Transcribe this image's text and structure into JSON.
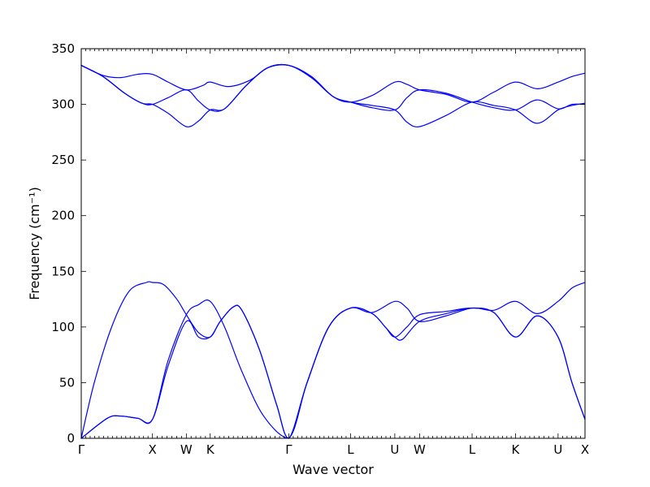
{
  "chart_data": {
    "type": "line",
    "title": "",
    "xlabel": "Wave vector",
    "ylabel": "Frequency (cm⁻¹)",
    "ylim": [
      0,
      350
    ],
    "xlim": [
      0,
      11.6
    ],
    "grid": false,
    "line_color": "#0000ff",
    "yticks": [
      0,
      50,
      100,
      150,
      200,
      250,
      300,
      350
    ],
    "x_tick_positions": [
      0,
      1.64,
      2.42,
      2.97,
      4.78,
      6.2,
      7.22,
      7.79,
      9.0,
      10.0,
      10.98,
      11.6
    ],
    "x_tick_labels": [
      "Γ",
      "X",
      "W",
      "K",
      "Γ",
      "L",
      "U",
      "W",
      "L",
      "K",
      "U",
      "X"
    ],
    "series": [
      {
        "values": [
          [
            0,
            0
          ],
          [
            0.3,
            50
          ],
          [
            0.7,
            100
          ],
          [
            1.1,
            132
          ],
          [
            1.5,
            140
          ],
          [
            1.64,
            140
          ],
          [
            1.9,
            138
          ],
          [
            2.2,
            125
          ],
          [
            2.42,
            111
          ],
          [
            2.7,
            95
          ],
          [
            2.97,
            91
          ],
          [
            3.2,
            105
          ],
          [
            3.5,
            118
          ],
          [
            3.7,
            115
          ],
          [
            4.1,
            80
          ],
          [
            4.5,
            30
          ],
          [
            4.78,
            0
          ],
          [
            5.2,
            50
          ],
          [
            5.7,
            100
          ],
          [
            6.2,
            117
          ],
          [
            6.7,
            112
          ],
          [
            7.0,
            100
          ],
          [
            7.22,
            91
          ],
          [
            7.5,
            100
          ],
          [
            7.79,
            111
          ],
          [
            8.4,
            114
          ],
          [
            9.0,
            117
          ],
          [
            9.5,
            113
          ],
          [
            10.0,
            91
          ],
          [
            10.5,
            110
          ],
          [
            10.98,
            91
          ],
          [
            11.3,
            50
          ],
          [
            11.6,
            17
          ]
        ]
      },
      {
        "values": [
          [
            0,
            0
          ],
          [
            0.6,
            18
          ],
          [
            0.9,
            20
          ],
          [
            1.3,
            18
          ],
          [
            1.64,
            17
          ],
          [
            2.0,
            70
          ],
          [
            2.42,
            111
          ],
          [
            2.7,
            120
          ],
          [
            2.97,
            123
          ],
          [
            3.3,
            100
          ],
          [
            3.7,
            60
          ],
          [
            4.2,
            20
          ],
          [
            4.78,
            0
          ],
          [
            5.2,
            50
          ],
          [
            5.7,
            100
          ],
          [
            6.2,
            117
          ],
          [
            6.7,
            113
          ],
          [
            7.22,
            123
          ],
          [
            7.5,
            117
          ],
          [
            7.79,
            105
          ],
          [
            8.4,
            110
          ],
          [
            9.0,
            117
          ],
          [
            9.5,
            115
          ],
          [
            10.0,
            123
          ],
          [
            10.5,
            112
          ],
          [
            10.98,
            123
          ],
          [
            11.3,
            135
          ],
          [
            11.6,
            140
          ]
        ]
      },
      {
        "values": [
          [
            0,
            0
          ],
          [
            0.6,
            18
          ],
          [
            0.9,
            20
          ],
          [
            1.3,
            18
          ],
          [
            1.64,
            17
          ],
          [
            2.0,
            65
          ],
          [
            2.42,
            105
          ],
          [
            2.7,
            91
          ],
          [
            2.97,
            91
          ],
          [
            3.2,
            105
          ],
          [
            3.5,
            118
          ],
          [
            3.7,
            115
          ],
          [
            4.1,
            80
          ],
          [
            4.5,
            30
          ],
          [
            4.78,
            0
          ],
          [
            5.2,
            50
          ],
          [
            5.7,
            100
          ],
          [
            6.2,
            117
          ],
          [
            6.7,
            112
          ],
          [
            7.0,
            100
          ],
          [
            7.22,
            91
          ],
          [
            7.4,
            89
          ],
          [
            7.79,
            105
          ],
          [
            8.4,
            112
          ],
          [
            9.0,
            117
          ],
          [
            9.5,
            113
          ],
          [
            10.0,
            91
          ],
          [
            10.5,
            110
          ],
          [
            10.98,
            91
          ],
          [
            11.3,
            50
          ],
          [
            11.6,
            17
          ]
        ]
      },
      {
        "values": [
          [
            0,
            335
          ],
          [
            0.5,
            326
          ],
          [
            0.9,
            324
          ],
          [
            1.3,
            327
          ],
          [
            1.64,
            327
          ],
          [
            2.0,
            320
          ],
          [
            2.42,
            313
          ],
          [
            2.8,
            317
          ],
          [
            2.97,
            320
          ],
          [
            3.4,
            316
          ],
          [
            3.9,
            322
          ],
          [
            4.3,
            333
          ],
          [
            4.78,
            335
          ],
          [
            5.3,
            325
          ],
          [
            5.8,
            307
          ],
          [
            6.2,
            302
          ],
          [
            6.7,
            308
          ],
          [
            7.22,
            320
          ],
          [
            7.5,
            318
          ],
          [
            7.79,
            313
          ],
          [
            8.4,
            309
          ],
          [
            9.0,
            302
          ],
          [
            9.5,
            311
          ],
          [
            10.0,
            320
          ],
          [
            10.5,
            314
          ],
          [
            10.98,
            320
          ],
          [
            11.3,
            325
          ],
          [
            11.6,
            328
          ]
        ]
      },
      {
        "values": [
          [
            0,
            335
          ],
          [
            0.5,
            325
          ],
          [
            1.0,
            310
          ],
          [
            1.4,
            301
          ],
          [
            1.64,
            300
          ],
          [
            2.0,
            306
          ],
          [
            2.42,
            313
          ],
          [
            2.7,
            303
          ],
          [
            2.97,
            295
          ],
          [
            3.3,
            296
          ],
          [
            3.8,
            317
          ],
          [
            4.3,
            333
          ],
          [
            4.78,
            335
          ],
          [
            5.3,
            324
          ],
          [
            5.8,
            307
          ],
          [
            6.2,
            302
          ],
          [
            6.7,
            297
          ],
          [
            7.22,
            295
          ],
          [
            7.5,
            306
          ],
          [
            7.79,
            313
          ],
          [
            8.4,
            310
          ],
          [
            9.0,
            302
          ],
          [
            9.5,
            297
          ],
          [
            10.0,
            295
          ],
          [
            10.5,
            304
          ],
          [
            10.98,
            296
          ],
          [
            11.3,
            300
          ],
          [
            11.6,
            300
          ]
        ]
      },
      {
        "values": [
          [
            0,
            335
          ],
          [
            0.5,
            325
          ],
          [
            1.0,
            310
          ],
          [
            1.4,
            301
          ],
          [
            1.64,
            300
          ],
          [
            2.0,
            292
          ],
          [
            2.42,
            280
          ],
          [
            2.7,
            285
          ],
          [
            2.97,
            295
          ],
          [
            3.3,
            296
          ],
          [
            3.8,
            317
          ],
          [
            4.3,
            333
          ],
          [
            4.78,
            335
          ],
          [
            5.3,
            324
          ],
          [
            5.8,
            307
          ],
          [
            6.2,
            302
          ],
          [
            6.7,
            299
          ],
          [
            7.22,
            295
          ],
          [
            7.5,
            284
          ],
          [
            7.79,
            280
          ],
          [
            8.4,
            290
          ],
          [
            9.0,
            302
          ],
          [
            9.5,
            299
          ],
          [
            10.0,
            295
          ],
          [
            10.5,
            283
          ],
          [
            10.98,
            295
          ],
          [
            11.3,
            299
          ],
          [
            11.6,
            301
          ]
        ]
      }
    ]
  }
}
